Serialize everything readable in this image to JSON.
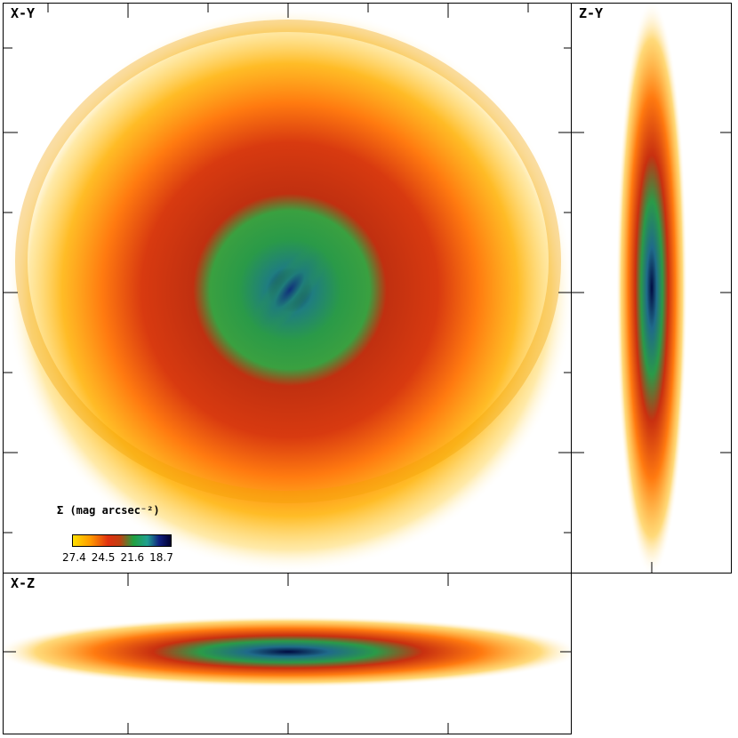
{
  "panels": {
    "xy": {
      "label": "X-Y"
    },
    "zy": {
      "label": "Z-Y"
    },
    "xz": {
      "label": "X-Z"
    }
  },
  "colorbar": {
    "title": "Σ (mag arcsec⁻²)",
    "ticks": [
      "27.4",
      "24.5",
      "21.6",
      "18.7"
    ],
    "colors": [
      "#ffe000",
      "#ff9900",
      "#e03010",
      "#20a040",
      "#20a090",
      "#102080",
      "#000030"
    ]
  }
}
